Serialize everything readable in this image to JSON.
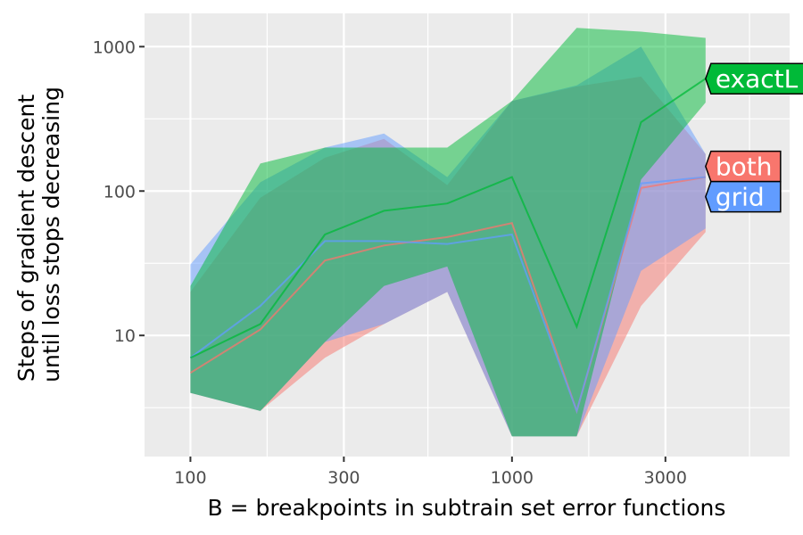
{
  "chart_data": {
    "type": "line",
    "x_scale": "log10",
    "y_scale": "log10",
    "xlabel": "B = breakpoints in subtrain set error functions",
    "ylabel": [
      "Steps of gradient descent",
      "until loss stops decreasing"
    ],
    "x_ticks": [
      {
        "value": 100,
        "label": "100"
      },
      {
        "value": 300,
        "label": "300"
      },
      {
        "value": 1000,
        "label": "1000"
      },
      {
        "value": 3000,
        "label": "3000"
      }
    ],
    "y_ticks": [
      {
        "value": 10,
        "label": "10"
      },
      {
        "value": 100,
        "label": "100"
      },
      {
        "value": 1000,
        "label": "1000"
      }
    ],
    "xlim": [
      72,
      7300
    ],
    "ylim": [
      1.45,
      1700
    ],
    "grid": true,
    "legend": "direct labels at line ends",
    "series": [
      {
        "name": "both",
        "color": "#F8766D",
        "x": [
          100,
          165,
          262,
          400,
          629,
          1000,
          1590,
          2520,
          4000
        ],
        "median": [
          5.5,
          11,
          33,
          42,
          48,
          60,
          3,
          105,
          125
        ],
        "lower": [
          4,
          3,
          7,
          12,
          20,
          2,
          2,
          16,
          52
        ],
        "upper": [
          20,
          90,
          170,
          230,
          110,
          420,
          530,
          620,
          180
        ]
      },
      {
        "name": "grid",
        "color": "#619CFF",
        "x": [
          100,
          165,
          262,
          400,
          629,
          1000,
          1590,
          2520,
          4000
        ],
        "median": [
          7,
          16,
          45,
          45,
          43,
          50,
          3,
          113,
          125
        ],
        "lower": [
          4,
          3,
          9,
          12,
          20,
          2,
          2,
          28,
          55
        ],
        "upper": [
          31,
          115,
          200,
          250,
          125,
          420,
          540,
          1000,
          180
        ]
      },
      {
        "name": "exactL",
        "color": "#00BA38",
        "x": [
          100,
          165,
          262,
          400,
          629,
          1000,
          1590,
          2520,
          4000
        ],
        "median": [
          7,
          12,
          50,
          73,
          82,
          125,
          11.5,
          300,
          600
        ],
        "lower": [
          4,
          3,
          9,
          22,
          30,
          2,
          2,
          120,
          410
        ],
        "upper": [
          22,
          155,
          200,
          200,
          200,
          420,
          1350,
          1270,
          1150
        ]
      }
    ],
    "labels": [
      {
        "series": "exactL",
        "text": "exactL",
        "fill": "#00BA38",
        "text_color": "#ffffff"
      },
      {
        "series": "both",
        "text": "both",
        "fill": "#F8766D",
        "text_color": "#000000"
      },
      {
        "series": "grid",
        "text": "grid",
        "fill": "#619CFF",
        "text_color": "#000000"
      }
    ]
  }
}
